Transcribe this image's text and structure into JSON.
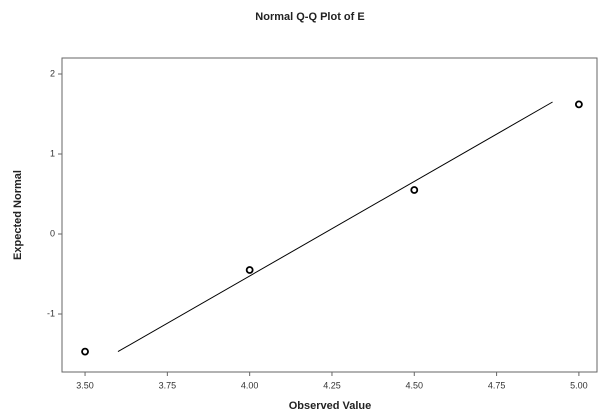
{
  "chart_data": {
    "type": "scatter",
    "title": "Normal Q-Q Plot of E",
    "x_label": "Observed Value",
    "y_label": "Expected Normal",
    "x": [
      3.5,
      4.0,
      4.5,
      5.0
    ],
    "values": [
      -1.47,
      -0.45,
      0.55,
      1.62
    ],
    "color": "#000000",
    "reference_line": {
      "x": [
        3.6,
        4.92
      ],
      "values": [
        -1.47,
        1.65
      ],
      "color": "#000000"
    },
    "xlim": [
      3.43,
      5.055
    ],
    "ylim": [
      -1.725,
      2.2
    ],
    "xticks": [
      {
        "value": 3.5,
        "label": "3.50"
      },
      {
        "value": 3.75,
        "label": "3.75"
      },
      {
        "value": 4.0,
        "label": "4.00"
      },
      {
        "value": 4.25,
        "label": "4.25"
      },
      {
        "value": 4.5,
        "label": "4.50"
      },
      {
        "value": 4.75,
        "label": "4.75"
      },
      {
        "value": 5.0,
        "label": "5.00"
      }
    ],
    "yticks": [
      -1,
      0,
      1,
      2
    ],
    "grid": false
  }
}
